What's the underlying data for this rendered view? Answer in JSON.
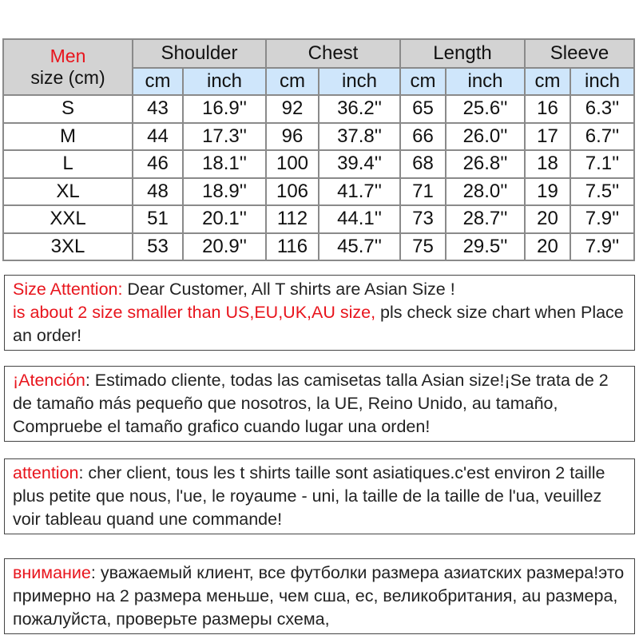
{
  "table": {
    "corner_title": "Men",
    "corner_subtitle": "size (cm)",
    "groups": [
      "Shoulder",
      "Chest",
      "Length",
      "Sleeve"
    ],
    "units": [
      "cm",
      "inch",
      "cm",
      "inch",
      "cm",
      "inch",
      "cm",
      "inch"
    ],
    "rows": [
      [
        "S",
        "43",
        "16.9''",
        "92",
        "36.2''",
        "65",
        "25.6''",
        "16",
        "6.3''"
      ],
      [
        "M",
        "44",
        "17.3''",
        "96",
        "37.8''",
        "66",
        "26.0''",
        "17",
        "6.7''"
      ],
      [
        "L",
        "46",
        "18.1''",
        "100",
        "39.4''",
        "68",
        "26.8''",
        "18",
        "7.1''"
      ],
      [
        "XL",
        "48",
        "18.9''",
        "106",
        "41.7''",
        "71",
        "28.0''",
        "19",
        "7.5''"
      ],
      [
        "XXL",
        "51",
        "20.1''",
        "112",
        "44.1''",
        "73",
        "28.7''",
        "20",
        "7.9''"
      ],
      [
        "3XL",
        "53",
        "20.9''",
        "116",
        "45.7''",
        "75",
        "29.5''",
        "20",
        "7.9''"
      ]
    ]
  },
  "notices": [
    {
      "label": "Size Attention:",
      "text": " Dear Customer, All T shirts are  Asian Size !",
      "red_line": "is about 2 size smaller than US,EU,UK,AU size,",
      "rest": " pls check size chart when Place an order!"
    },
    {
      "label": "¡Atención",
      "text": ": Estimado cliente, todas las camisetas talla Asian size!¡Se trata de 2 de tamaño más pequeño que nosotros, la UE, Reino Unido, au tamaño, Compruebe el tamaño grafico cuando lugar una orden!"
    },
    {
      "label": "attention",
      "text": ": cher client, tous les t shirts taille sont asiatiques.c'est environ 2 taille plus petite que nous, l'ue, le royaume - uni, la taille de la taille de l'ua, veuillez voir tableau quand une commande!"
    },
    {
      "label": "внимание",
      "text": ": уважаемый клиент, все футболки размера азиатских размера!это примерно на 2 размера меньше, чем сша, ес, великобритания, au размера, пожалуйста, проверьте размеры схема,"
    }
  ],
  "colors": {
    "accent_red": "#e8141c",
    "header_gray": "#d3d3d3",
    "unit_blue": "#cfe6fb"
  }
}
